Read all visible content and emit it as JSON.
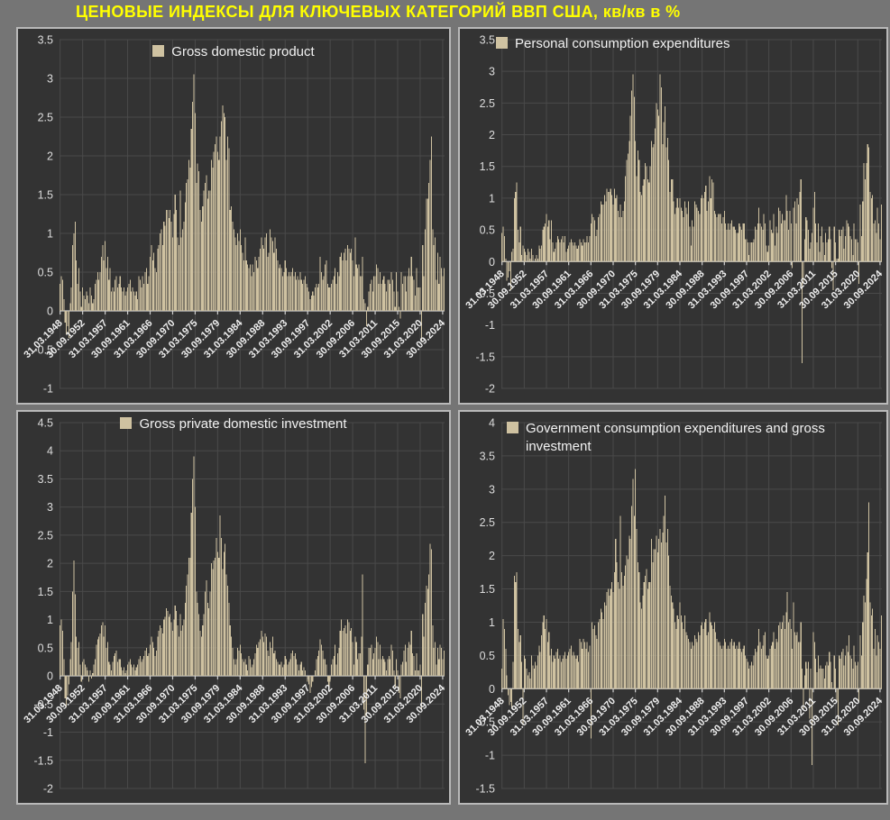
{
  "title": "ЦЕНОВЫЕ ИНДЕКСЫ ДЛЯ КЛЮЧЕВЫХ КАТЕГОРИЙ ВВП США, кв/кв в %",
  "colors": {
    "page_background": "#757575",
    "panel_background": "#333333",
    "panel_border": "#b9b9b9",
    "grid": "#4a4a4a",
    "axis": "#cfcfcf",
    "bar": "#cfc2a1",
    "y_tick_text": "#dcdcdc",
    "x_tick_text": "#efefef",
    "legend_text": "#f2f2f2",
    "title_text": "#ffff00"
  },
  "x_tick_labels": [
    "31.03.1948",
    "30.09.1952",
    "31.03.1957",
    "30.09.1961",
    "31.03.1966",
    "30.09.1970",
    "31.03.1975",
    "30.09.1979",
    "31.03.1984",
    "30.09.1988",
    "31.03.1993",
    "30.09.1997",
    "31.03.2002",
    "30.09.2006",
    "31.03.2011",
    "30.09.2015",
    "31.03.2020",
    "30.09.2024"
  ],
  "x_tick_every": 18,
  "chart_data": [
    {
      "type": "bar",
      "legend": "Gross domestic product",
      "legend_align": "center",
      "ylim": [
        -1,
        3.5
      ],
      "y_step": 0.5,
      "grid": true,
      "x_unit": "quarter, 1948Q1-2024Q4",
      "values": [
        0.35,
        0.45,
        0.4,
        0.15,
        -0.15,
        -0.3,
        -0.2,
        -0.35,
        0.1,
        0.3,
        0.85,
        1.0,
        1.15,
        0.65,
        0.35,
        0.55,
        0.25,
        0.05,
        0.3,
        0.2,
        0.15,
        0.25,
        0.2,
        0.1,
        0.3,
        0.2,
        0.1,
        0.15,
        0.35,
        0.4,
        0.5,
        0.4,
        0.5,
        0.7,
        0.85,
        0.65,
        0.9,
        0.55,
        0.7,
        0.4,
        0.55,
        0.25,
        0.3,
        0.25,
        0.4,
        0.45,
        0.3,
        0.35,
        0.45,
        0.3,
        0.25,
        0.3,
        0.2,
        0.25,
        0.3,
        0.35,
        0.4,
        0.25,
        0.3,
        0.25,
        0.2,
        0.25,
        0.15,
        0.45,
        0.4,
        0.3,
        0.45,
        0.35,
        0.5,
        0.55,
        0.35,
        0.45,
        0.7,
        0.85,
        0.65,
        0.75,
        0.55,
        0.5,
        0.8,
        0.85,
        1.0,
        1.05,
        0.85,
        1.15,
        1.1,
        1.3,
        1.3,
        1.2,
        1.3,
        1.15,
        0.95,
        1.25,
        1.5,
        1.3,
        0.95,
        0.85,
        1.55,
        0.95,
        1.05,
        1.15,
        1.4,
        1.65,
        1.7,
        1.95,
        1.85,
        2.35,
        2.7,
        3.05,
        2.55,
        1.65,
        1.9,
        1.8,
        1.3,
        1.15,
        1.35,
        1.55,
        1.65,
        1.75,
        1.45,
        1.55,
        1.55,
        1.95,
        1.85,
        2.05,
        2.15,
        2.25,
        2.05,
        1.95,
        2.25,
        2.45,
        2.65,
        2.55,
        2.5,
        1.95,
        2.25,
        2.1,
        1.3,
        1.35,
        1.15,
        1.05,
        0.95,
        0.85,
        1.0,
        0.9,
        1.05,
        0.85,
        0.75,
        0.65,
        0.95,
        0.65,
        0.6,
        0.55,
        0.6,
        0.45,
        0.6,
        0.5,
        0.7,
        0.65,
        0.55,
        0.7,
        0.8,
        0.95,
        0.85,
        0.8,
        0.95,
        1.0,
        0.7,
        0.75,
        1.05,
        0.95,
        0.9,
        0.75,
        0.95,
        0.8,
        0.65,
        0.55,
        0.6,
        0.55,
        0.45,
        0.5,
        0.65,
        0.55,
        0.45,
        0.5,
        0.45,
        0.5,
        0.55,
        0.45,
        0.5,
        0.4,
        0.45,
        0.4,
        0.5,
        0.4,
        0.35,
        0.4,
        0.45,
        0.35,
        0.3,
        0.25,
        0.15,
        0.2,
        0.25,
        0.2,
        0.3,
        0.35,
        0.3,
        0.35,
        0.7,
        0.5,
        0.4,
        0.45,
        0.6,
        0.65,
        0.35,
        0.3,
        0.3,
        0.35,
        0.4,
        0.45,
        0.55,
        0.35,
        0.5,
        0.45,
        0.7,
        0.75,
        0.65,
        0.75,
        0.8,
        0.65,
        0.85,
        0.8,
        0.75,
        0.8,
        0.65,
        0.45,
        0.95,
        0.6,
        0.55,
        0.6,
        0.45,
        0.45,
        0.7,
        0.15,
        0.1,
        -0.2,
        0.05,
        0.25,
        0.35,
        0.4,
        0.25,
        0.45,
        0.45,
        0.6,
        0.55,
        0.35,
        0.5,
        0.35,
        0.4,
        0.45,
        0.35,
        0.25,
        0.4,
        0.4,
        0.35,
        0.5,
        0.4,
        0.25,
        0.05,
        0.5,
        0.25,
        0.05,
        -0.1,
        0.5,
        0.35,
        0.45,
        0.45,
        0.25,
        0.45,
        0.55,
        0.45,
        0.7,
        0.45,
        0.4,
        0.2,
        0.55,
        0.3,
        0.3,
        0.3,
        -0.4,
        0.85,
        0.45,
        1.05,
        1.45,
        1.45,
        1.65,
        1.95,
        2.25,
        1.05,
        0.85,
        0.95,
        0.4,
        0.75,
        0.35,
        0.7,
        0.55,
        0.45,
        0.55
      ]
    },
    {
      "type": "bar",
      "legend": "Personal consumption expenditures",
      "legend_align": "left",
      "ylim": [
        -2,
        3.5
      ],
      "y_step": 0.5,
      "grid": true,
      "x_unit": "quarter, 1948Q1-2024Q4",
      "values": [
        0.45,
        0.55,
        0.4,
        0.05,
        -0.3,
        -0.25,
        -0.15,
        -0.45,
        0.15,
        0.2,
        1.0,
        1.1,
        1.25,
        0.5,
        0.3,
        0.55,
        0.1,
        0.25,
        0.2,
        0.15,
        0.1,
        0.2,
        0.15,
        0.05,
        0.2,
        0.1,
        0.0,
        0.05,
        0.1,
        0.05,
        0.25,
        0.2,
        0.25,
        0.5,
        0.55,
        0.6,
        0.75,
        0.55,
        0.65,
        0.35,
        0.65,
        0.3,
        0.15,
        0.2,
        0.3,
        0.4,
        0.35,
        0.3,
        0.35,
        0.4,
        0.3,
        0.4,
        0.15,
        0.2,
        0.25,
        0.3,
        0.35,
        0.3,
        0.25,
        0.3,
        0.25,
        0.2,
        0.25,
        0.35,
        0.3,
        0.25,
        0.35,
        0.3,
        0.3,
        0.4,
        0.3,
        0.4,
        0.6,
        0.75,
        0.7,
        0.65,
        0.4,
        0.5,
        0.7,
        0.75,
        0.95,
        0.9,
        0.9,
        1.05,
        0.95,
        1.15,
        1.1,
        1.1,
        1.15,
        1.05,
        0.9,
        1.15,
        1.0,
        1.05,
        0.8,
        0.7,
        0.9,
        0.7,
        0.8,
        0.95,
        1.35,
        1.6,
        1.7,
        1.9,
        2.3,
        2.7,
        2.95,
        2.6,
        1.9,
        1.35,
        1.75,
        1.6,
        1.1,
        1.05,
        1.2,
        1.3,
        1.55,
        1.5,
        1.3,
        1.25,
        1.5,
        1.9,
        1.8,
        1.85,
        2.1,
        2.5,
        2.4,
        2.3,
        2.95,
        2.75,
        1.85,
        2.2,
        2.45,
        1.8,
        1.95,
        1.6,
        1.1,
        1.3,
        1.3,
        0.95,
        0.75,
        0.85,
        1.0,
        0.85,
        1.0,
        0.85,
        0.8,
        0.7,
        0.95,
        0.85,
        0.75,
        0.95,
        0.55,
        0.25,
        0.65,
        0.55,
        0.95,
        0.9,
        0.85,
        0.8,
        0.75,
        1.0,
        1.05,
        1.0,
        1.1,
        1.2,
        0.8,
        0.95,
        1.35,
        1.0,
        1.3,
        1.25,
        0.8,
        0.75,
        0.7,
        0.75,
        0.75,
        0.75,
        0.6,
        0.7,
        0.8,
        0.6,
        0.5,
        0.6,
        0.5,
        0.6,
        0.65,
        0.55,
        0.55,
        0.5,
        0.45,
        0.45,
        0.6,
        0.55,
        0.5,
        0.6,
        0.6,
        0.35,
        0.35,
        0.3,
        0.1,
        0.3,
        0.3,
        0.3,
        0.35,
        0.55,
        0.5,
        0.6,
        0.85,
        0.6,
        0.55,
        0.5,
        0.75,
        0.6,
        0.25,
        0.15,
        0.25,
        0.65,
        0.5,
        0.45,
        0.75,
        0.25,
        0.55,
        0.45,
        0.85,
        0.8,
        0.6,
        0.75,
        0.65,
        0.65,
        1.05,
        0.8,
        0.5,
        0.8,
        0.6,
        -0.1,
        0.85,
        0.95,
        0.6,
        1.0,
        0.9,
        1.1,
        1.3,
        -1.6,
        -0.35,
        0.35,
        0.7,
        0.65,
        0.5,
        0.2,
        0.3,
        0.45,
        0.85,
        1.1,
        0.6,
        0.3,
        0.6,
        0.15,
        0.4,
        0.55,
        0.3,
        0.1,
        0.45,
        0.3,
        0.35,
        0.55,
        0.35,
        -0.1,
        -0.45,
        0.55,
        0.3,
        0.05,
        0.05,
        0.5,
        0.4,
        0.5,
        0.55,
        0.2,
        0.4,
        0.65,
        0.6,
        0.55,
        0.4,
        0.35,
        0.1,
        0.6,
        0.35,
        0.35,
        0.3,
        -0.35,
        0.9,
        0.4,
        0.95,
        1.55,
        1.3,
        1.55,
        1.85,
        1.8,
        1.1,
        1.0,
        1.05,
        0.6,
        0.65,
        0.45,
        0.85,
        0.6,
        0.35,
        0.9
      ]
    },
    {
      "type": "bar",
      "legend": "Gross private domestic investment",
      "legend_align": "center",
      "ylim": [
        -2,
        4.5
      ],
      "y_step": 0.5,
      "grid": true,
      "x_unit": "quarter, 1948Q1-2024Q4",
      "values": [
        0.9,
        1.0,
        0.8,
        0.3,
        -0.4,
        -0.55,
        -0.35,
        -0.15,
        0.3,
        0.6,
        1.5,
        2.05,
        1.45,
        0.7,
        0.5,
        0.6,
        0.2,
        -0.1,
        0.25,
        0.3,
        0.2,
        0.15,
        0.1,
        -0.1,
        0.1,
        -0.05,
        0.05,
        0.2,
        0.3,
        0.55,
        0.65,
        0.7,
        0.75,
        0.9,
        0.95,
        0.7,
        0.9,
        0.5,
        0.6,
        0.25,
        0.2,
        0.1,
        0.25,
        0.35,
        0.4,
        0.45,
        0.25,
        0.3,
        0.3,
        0.15,
        0.1,
        0.15,
        0.05,
        0.1,
        0.2,
        0.25,
        0.3,
        0.2,
        0.15,
        0.2,
        0.1,
        0.15,
        0.2,
        0.3,
        0.35,
        0.25,
        0.3,
        0.35,
        0.45,
        0.5,
        0.35,
        0.4,
        0.55,
        0.7,
        0.6,
        0.5,
        0.35,
        0.45,
        0.7,
        0.8,
        0.9,
        0.85,
        0.75,
        1.0,
        1.05,
        1.2,
        1.15,
        1.05,
        1.1,
        0.95,
        0.8,
        1.0,
        1.25,
        1.15,
        0.9,
        0.7,
        1.1,
        0.8,
        0.9,
        1.0,
        1.3,
        1.6,
        1.8,
        2.1,
        2.1,
        2.9,
        3.5,
        3.9,
        3.0,
        1.5,
        1.3,
        1.1,
        0.8,
        0.7,
        0.9,
        1.1,
        1.5,
        1.7,
        1.3,
        1.2,
        1.5,
        2.0,
        1.9,
        2.05,
        2.1,
        2.45,
        2.2,
        2.1,
        2.85,
        2.45,
        1.9,
        2.2,
        2.35,
        1.8,
        1.6,
        1.3,
        0.9,
        0.7,
        0.5,
        0.3,
        0.2,
        0.3,
        0.5,
        0.45,
        0.55,
        0.4,
        0.3,
        0.25,
        0.3,
        0.2,
        0.1,
        0.35,
        0.3,
        0.15,
        0.2,
        0.3,
        0.4,
        0.55,
        0.5,
        0.6,
        0.65,
        0.8,
        0.7,
        0.6,
        0.75,
        0.7,
        0.45,
        0.35,
        0.6,
        0.5,
        0.7,
        0.4,
        0.45,
        0.3,
        0.25,
        0.2,
        0.2,
        0.25,
        0.15,
        0.2,
        0.35,
        0.3,
        0.2,
        0.25,
        0.3,
        0.4,
        0.45,
        0.35,
        0.4,
        0.3,
        0.2,
        0.1,
        0.2,
        0.25,
        0.1,
        0.15,
        0.1,
        0.0,
        -0.1,
        -0.15,
        -0.3,
        -0.2,
        -0.1,
        0.0,
        0.1,
        0.3,
        0.35,
        0.45,
        0.65,
        0.55,
        0.45,
        0.3,
        0.3,
        0.2,
        -0.1,
        -0.25,
        -0.1,
        0.2,
        0.3,
        0.35,
        0.55,
        0.2,
        0.4,
        0.5,
        0.8,
        1.0,
        0.8,
        0.85,
        0.9,
        0.75,
        1.0,
        0.95,
        0.8,
        0.85,
        0.6,
        0.2,
        0.7,
        0.6,
        0.3,
        0.4,
        0.4,
        0.7,
        1.8,
        -0.6,
        -1.55,
        -0.7,
        0.2,
        0.5,
        0.5,
        0.55,
        0.3,
        0.4,
        0.5,
        0.7,
        0.6,
        0.3,
        0.55,
        0.3,
        0.35,
        0.3,
        0.25,
        0.1,
        0.3,
        0.35,
        0.3,
        0.55,
        0.45,
        0.1,
        -0.2,
        0.3,
        0.1,
        -0.3,
        -0.4,
        0.2,
        0.25,
        0.45,
        0.55,
        0.25,
        0.5,
        0.6,
        0.55,
        0.8,
        0.4,
        0.35,
        0.1,
        0.4,
        0.1,
        0.1,
        0.2,
        -0.6,
        1.1,
        0.7,
        1.3,
        1.6,
        1.55,
        1.8,
        2.35,
        2.25,
        0.9,
        0.5,
        0.6,
        0.2,
        0.5,
        0.3,
        0.55,
        0.5,
        0.3,
        0.45
      ]
    },
    {
      "type": "bar",
      "legend": "Government consumption expenditures and gross investment",
      "legend_align": "left",
      "ylim": [
        -1.5,
        4
      ],
      "y_step": 0.5,
      "grid": true,
      "x_unit": "quarter, 1948Q1-2024Q4",
      "values": [
        0.3,
        1.05,
        0.9,
        0.6,
        0.2,
        -0.1,
        -0.25,
        -0.2,
        -0.3,
        0.4,
        1.7,
        1.6,
        1.75,
        0.9,
        0.7,
        0.8,
        0.4,
        -0.55,
        0.5,
        0.45,
        0.3,
        0.2,
        0.25,
        0.15,
        0.5,
        0.35,
        0.3,
        0.4,
        0.35,
        0.5,
        0.65,
        0.55,
        0.8,
        1.0,
        1.1,
        0.9,
        1.05,
        0.7,
        0.85,
        0.5,
        0.6,
        0.4,
        0.5,
        0.45,
        0.55,
        0.6,
        0.45,
        0.5,
        0.4,
        0.45,
        0.5,
        0.55,
        0.45,
        0.5,
        0.55,
        0.6,
        0.65,
        0.5,
        0.55,
        0.5,
        0.45,
        0.5,
        0.4,
        0.75,
        0.7,
        0.6,
        0.75,
        0.7,
        0.6,
        0.7,
        0.55,
        0.65,
        -0.75,
        1.0,
        0.9,
        0.95,
        0.8,
        0.75,
        1.0,
        1.05,
        1.2,
        1.15,
        1.05,
        1.3,
        1.25,
        1.45,
        1.5,
        1.4,
        1.5,
        1.6,
        1.45,
        1.75,
        2.25,
        1.9,
        1.6,
        1.5,
        2.6,
        1.75,
        1.55,
        1.7,
        1.85,
        2.0,
        1.95,
        2.3,
        2.25,
        2.75,
        3.15,
        2.6,
        3.3,
        2.4,
        1.9,
        1.75,
        1.3,
        1.2,
        1.4,
        1.6,
        1.7,
        1.8,
        1.5,
        1.6,
        1.6,
        2.25,
        1.9,
        2.1,
        2.1,
        2.3,
        2.05,
        2.25,
        2.4,
        2.2,
        2.35,
        2.6,
        2.9,
        2.2,
        2.4,
        2.0,
        1.55,
        1.4,
        1.3,
        1.2,
        1.0,
        0.9,
        1.1,
        1.05,
        1.3,
        1.1,
        1.0,
        0.9,
        1.1,
        0.85,
        0.8,
        0.75,
        0.7,
        0.6,
        0.7,
        0.65,
        0.8,
        0.75,
        0.7,
        0.85,
        0.8,
        0.95,
        1.0,
        0.9,
        1.0,
        1.05,
        0.8,
        0.85,
        1.15,
        1.0,
        0.95,
        0.9,
        1.0,
        0.85,
        0.75,
        0.7,
        0.7,
        0.65,
        0.6,
        0.65,
        0.75,
        0.7,
        0.6,
        0.65,
        0.6,
        0.7,
        0.75,
        0.65,
        0.7,
        0.6,
        0.65,
        0.6,
        0.7,
        0.6,
        0.55,
        0.6,
        0.65,
        0.5,
        0.45,
        0.4,
        0.3,
        0.35,
        0.4,
        0.35,
        0.5,
        0.6,
        0.55,
        0.65,
        0.9,
        0.7,
        0.6,
        0.65,
        0.8,
        0.85,
        0.5,
        0.45,
        0.5,
        0.6,
        0.65,
        0.7,
        0.85,
        0.6,
        0.75,
        0.7,
        0.95,
        1.0,
        0.9,
        1.0,
        1.1,
        0.9,
        1.15,
        1.45,
        1.0,
        1.05,
        0.9,
        0.6,
        1.3,
        0.85,
        0.8,
        0.85,
        0.7,
        0.7,
        1.0,
        0.3,
        -0.3,
        0.2,
        0.4,
        0.3,
        0.4,
        -0.45,
        0.3,
        -1.15,
        0.85,
        0.7,
        0.45,
        0.25,
        0.5,
        0.3,
        0.35,
        0.3,
        0.3,
        0.15,
        0.35,
        0.4,
        0.35,
        0.55,
        0.4,
        0.1,
        0.0,
        0.5,
        0.3,
        -0.2,
        -0.55,
        0.5,
        0.45,
        0.55,
        0.6,
        0.35,
        0.5,
        0.65,
        0.55,
        0.8,
        0.5,
        0.45,
        0.3,
        0.65,
        0.4,
        0.35,
        0.4,
        -0.2,
        0.8,
        0.5,
        1.0,
        1.4,
        1.3,
        1.65,
        2.05,
        2.8,
        1.3,
        1.1,
        1.2,
        0.6,
        0.9,
        0.5,
        0.8,
        0.7,
        0.6,
        1.1
      ]
    }
  ]
}
